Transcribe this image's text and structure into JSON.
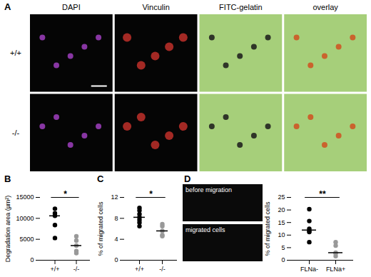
{
  "panel_a": {
    "panel_label": "A",
    "columns": [
      "DAPI",
      "Vinculin",
      "FITC-gelatin",
      "overlay"
    ],
    "rows": [
      "+/+",
      "-/-"
    ]
  },
  "chart_data": [
    {
      "panel_label": "B",
      "type": "scatter",
      "y_label": "Degradation area (µm²)",
      "categories": [
        "+/+",
        "-/-"
      ],
      "colors": [
        "#000000",
        "#999999"
      ],
      "values": [
        [
          12300,
          11200,
          10600,
          8400,
          5300
        ],
        [
          5700,
          4700,
          3500,
          2200,
          1700
        ]
      ],
      "medians": [
        10600,
        3500
      ],
      "ylim": [
        0,
        15000
      ],
      "yticks": [
        0,
        5000,
        10000,
        15000
      ],
      "significance": "*"
    },
    {
      "panel_label": "C",
      "type": "scatter",
      "y_label": "% of migrated cells",
      "categories": [
        "+/+",
        "-/-"
      ],
      "colors": [
        "#000000",
        "#999999"
      ],
      "values": [
        [
          10.0,
          9.5,
          8.8,
          8.2,
          7.7,
          7.2,
          6.5
        ],
        [
          6.9,
          6.5,
          5.6,
          4.8,
          4.6
        ]
      ],
      "medians": [
        8.2,
        5.6
      ],
      "ylim": [
        0,
        12
      ],
      "yticks": [
        0,
        4,
        8,
        12
      ],
      "significance": "*"
    },
    {
      "panel_label": "D",
      "type": "scatter",
      "y_label": "% of migrated cells",
      "images": [
        "before migration",
        "migrated cells"
      ],
      "categories": [
        "FLNa-",
        "FLNa+"
      ],
      "colors": [
        "#000000",
        "#999999"
      ],
      "values": [
        [
          20.3,
          15.6,
          12.5,
          11.6,
          11.2,
          7.2
        ],
        [
          7.2,
          5.8,
          3.0,
          2.7,
          1.6
        ]
      ],
      "medians": [
        12.0,
        3.0
      ],
      "ylim": [
        0,
        25
      ],
      "yticks": [
        0,
        5,
        10,
        15,
        20,
        25
      ],
      "significance": "**"
    }
  ]
}
